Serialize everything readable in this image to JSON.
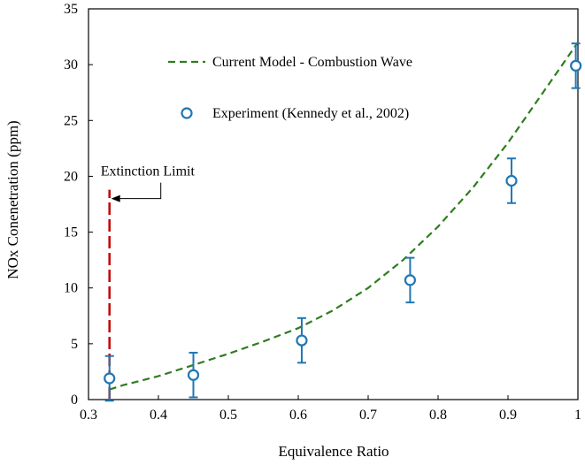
{
  "chart_data": {
    "type": "scatter",
    "title": "",
    "xlabel": "Equivalence Ratio",
    "ylabel": "NOx Conenetration (ppm)",
    "xlim": [
      0.3,
      1.0
    ],
    "ylim": [
      0,
      35
    ],
    "xticks": [
      0.3,
      0.4,
      0.5,
      0.6,
      0.7,
      0.8,
      0.9,
      1.0
    ],
    "xtick_labels": [
      "0.3",
      "0.4",
      "0.5",
      "0.6",
      "0.7",
      "0.8",
      "0.9",
      "1"
    ],
    "yticks": [
      0,
      5,
      10,
      15,
      20,
      25,
      30,
      35
    ],
    "ytick_labels": [
      "0",
      "5",
      "10",
      "15",
      "20",
      "25",
      "30",
      "35"
    ],
    "grid": false,
    "legend_position": "top-right",
    "series": [
      {
        "name": "Current Model - Combustion Wave",
        "kind": "dashed-line",
        "color": "#2e7d1f",
        "x": [
          0.33,
          0.35,
          0.4,
          0.45,
          0.5,
          0.55,
          0.6,
          0.65,
          0.7,
          0.75,
          0.8,
          0.85,
          0.9,
          0.95,
          1.0
        ],
        "y": [
          0.9,
          1.3,
          2.1,
          3.1,
          4.1,
          5.2,
          6.4,
          8.0,
          10.0,
          12.5,
          15.5,
          19.0,
          23.0,
          27.5,
          32.0
        ]
      },
      {
        "name": "Experiment (Kennedy et al., 2002)",
        "kind": "markers-with-errorbars",
        "color": "#1f77b4",
        "x": [
          0.33,
          0.45,
          0.605,
          0.76,
          0.905,
          0.997
        ],
        "y": [
          1.9,
          2.2,
          5.3,
          10.7,
          19.6,
          29.9
        ],
        "yerr": [
          2.0,
          2.0,
          2.0,
          2.0,
          2.0,
          2.0
        ]
      }
    ],
    "annotations": [
      {
        "text": "Extinction Limit",
        "x": 0.33,
        "y_range": [
          0,
          18.8
        ],
        "arrow_to_y": 18.0,
        "line_color": "#c00000"
      }
    ]
  }
}
